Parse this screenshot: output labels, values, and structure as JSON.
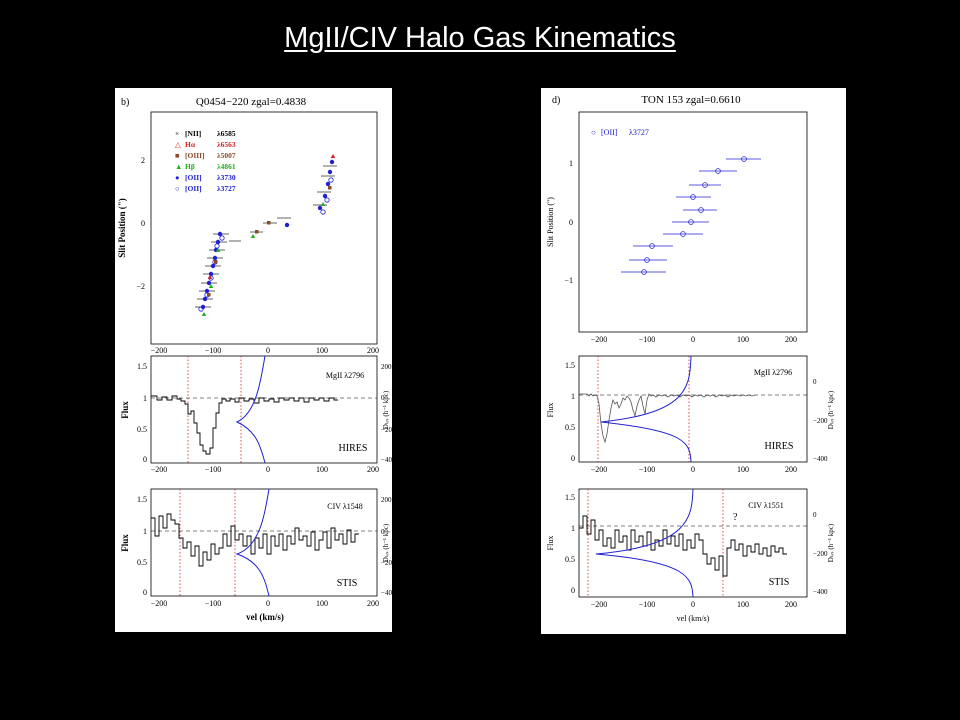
{
  "slide": {
    "title": "MgII/CIV Halo Gas Kinematics"
  },
  "figures": [
    {
      "panel_letter": "b)",
      "title": "Q0454−220 zgal=0.4838",
      "top": {
        "ylabel": "Slit Position (\")",
        "yticks": [
          "2",
          "0",
          "−2"
        ],
        "xticks": [
          "−200",
          "−100",
          "0",
          "100",
          "200"
        ],
        "legend": [
          {
            "marker": "×",
            "ion": "[NII]",
            "line": "λ6585",
            "color": "#000000"
          },
          {
            "marker": "△",
            "ion": "Hα",
            "line": "λ6563",
            "color": "#d42020"
          },
          {
            "marker": "■",
            "ion": "[OIII]",
            "line": "λ5007",
            "color": "#8a4a2a"
          },
          {
            "marker": "▲",
            "ion": "Hβ",
            "line": "λ4861",
            "color": "#20b020"
          },
          {
            "marker": "●",
            "ion": "[OII]",
            "line": "λ3730",
            "color": "#2020d0"
          },
          {
            "marker": "○",
            "ion": "[OII]",
            "line": "λ3727",
            "color": "#2020d0"
          }
        ]
      },
      "middle": {
        "ylabel": "Flux",
        "yticks": [
          "1.5",
          "1",
          "0.5",
          "0"
        ],
        "line_label": "MgII λ2796",
        "instrument": "HIRES",
        "right_label": "Dₗₒₛ (h⁻¹ kpc)",
        "right_ticks": [
          "200",
          "0",
          "−200",
          "−400"
        ],
        "xticks": [
          "−200",
          "−100",
          "0",
          "100",
          "200"
        ]
      },
      "bottom": {
        "ylabel": "Flux",
        "yticks": [
          "1.5",
          "1",
          "0.5",
          "0"
        ],
        "line_label": "CIV λ1548",
        "instrument": "STIS",
        "right_label": "Dₗₒₛ (h⁻¹ kpc)",
        "right_ticks": [
          "200",
          "0",
          "−200",
          "−400"
        ],
        "xticks": [
          "−200",
          "−100",
          "0",
          "100",
          "200"
        ],
        "xlabel": "vel (km/s)"
      }
    },
    {
      "panel_letter": "d)",
      "title": "TON 153 zgal=0.6610",
      "top": {
        "ylabel": "Slit Position (\")",
        "yticks": [
          "1",
          "0",
          "−1"
        ],
        "xticks": [
          "−200",
          "−100",
          "0",
          "100",
          "200"
        ],
        "legend": [
          {
            "marker": "○",
            "ion": "[OII]",
            "line": "λ3727",
            "color": "#2020d0"
          }
        ]
      },
      "middle": {
        "ylabel": "Flux",
        "yticks": [
          "1.5",
          "1",
          "0.5",
          "0"
        ],
        "line_label": "MgII λ2796",
        "instrument": "HIRES",
        "right_label": "Dₗₒₛ (h⁻¹ kpc)",
        "right_ticks": [
          "0",
          "−200",
          "−400"
        ],
        "xticks": [
          "−200",
          "−100",
          "0",
          "100",
          "200"
        ]
      },
      "bottom": {
        "ylabel": "Flux",
        "yticks": [
          "1.5",
          "1",
          "0.5",
          "0"
        ],
        "line_label": "CIV λ1551",
        "instrument": "STIS",
        "annotation": "?",
        "right_label": "Dₗₒₛ (h⁻¹ kpc)",
        "right_ticks": [
          "0",
          "−200",
          "−400"
        ],
        "xticks": [
          "−200",
          "−100",
          "0",
          "100",
          "200"
        ],
        "xlabel": "vel (km/s)"
      }
    }
  ]
}
